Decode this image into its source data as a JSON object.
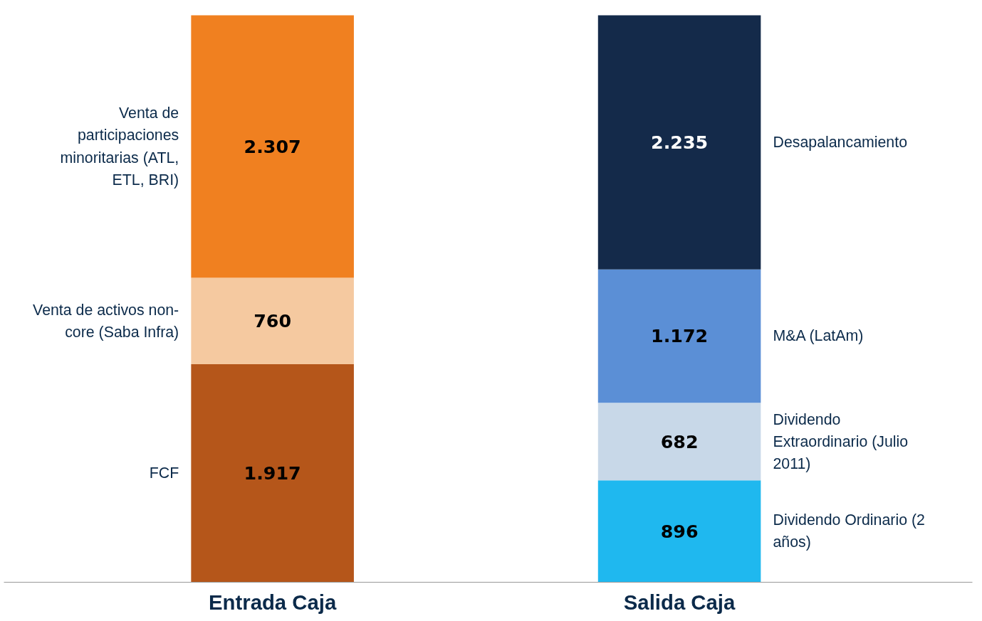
{
  "chart_data": {
    "type": "bar",
    "stacked": true,
    "categories": [
      "Entrada Caja",
      "Salida Caja"
    ],
    "series": [
      {
        "name": "FCF",
        "color": "#b5561a",
        "values": [
          1917,
          null
        ],
        "value_labels": [
          "1.917",
          null
        ]
      },
      {
        "name": "Venta de activos non-core (Saba Infra)",
        "color": "#f5c9a0",
        "values": [
          760,
          null
        ],
        "value_labels": [
          "760",
          null
        ]
      },
      {
        "name": "Venta de participaciones minoritarias (ATL, ETL, BRI)",
        "color": "#f08020",
        "values": [
          2307,
          null
        ],
        "value_labels": [
          "2.307",
          null
        ]
      },
      {
        "name": "Dividendo Ordinario (2 años)",
        "color": "#1fb8ef",
        "values": [
          null,
          896
        ],
        "value_labels": [
          null,
          "896"
        ]
      },
      {
        "name": "Dividendo Extraordinario (Julio 2011)",
        "color": "#c8d8e8",
        "values": [
          null,
          682
        ],
        "value_labels": [
          null,
          "682"
        ]
      },
      {
        "name": "M&A (LatAm)",
        "color": "#5b8fd6",
        "values": [
          null,
          1172
        ],
        "value_labels": [
          null,
          "1.172"
        ]
      },
      {
        "name": "Desapalancamiento",
        "color": "#142a4a",
        "values": [
          null,
          2235
        ],
        "value_labels": [
          null,
          "2.235"
        ]
      }
    ]
  }
}
